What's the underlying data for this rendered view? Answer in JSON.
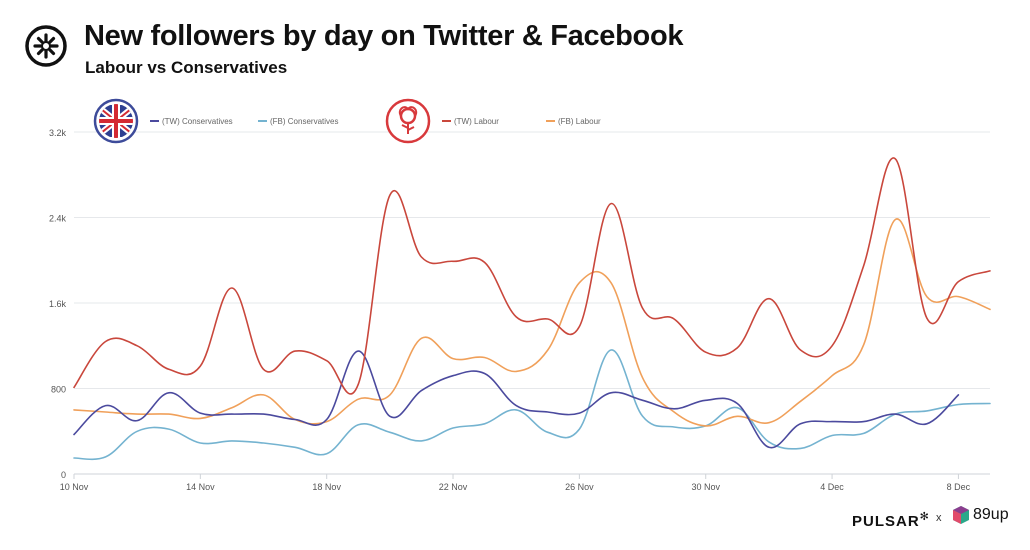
{
  "header": {
    "title": "New followers by day on Twitter & Facebook",
    "subtitle": "Labour vs Conservatives"
  },
  "footer": {
    "brand": "PULSAR",
    "separator": "x",
    "partner": "89up"
  },
  "icons": {
    "header_logo": "pulsar-asterisk-logo",
    "conservatives": "union-jack-badge",
    "labour": "labour-rose-badge"
  },
  "chart_data": {
    "type": "line",
    "x": [
      "10 Nov",
      "11 Nov",
      "12 Nov",
      "13 Nov",
      "14 Nov",
      "15 Nov",
      "16 Nov",
      "17 Nov",
      "18 Nov",
      "19 Nov",
      "20 Nov",
      "21 Nov",
      "22 Nov",
      "23 Nov",
      "24 Nov",
      "25 Nov",
      "26 Nov",
      "27 Nov",
      "28 Nov",
      "29 Nov",
      "30 Nov",
      "1 Dec",
      "2 Dec",
      "3 Dec",
      "4 Dec",
      "5 Dec",
      "6 Dec",
      "7 Dec",
      "8 Dec",
      "9 Dec"
    ],
    "x_tick_labels": [
      "10 Nov",
      "14 Nov",
      "18 Nov",
      "22 Nov",
      "26 Nov",
      "30 Nov",
      "4 Dec",
      "8 Dec"
    ],
    "ylim": [
      0,
      3200
    ],
    "y_ticks": [
      0,
      800,
      1600,
      2400,
      3200
    ],
    "y_tick_labels": [
      "0",
      "800",
      "1.6k",
      "2.4k",
      "3.2k"
    ],
    "grid": "horizontal",
    "legend_position": "top",
    "series": [
      {
        "name": "(TW) Conservatives",
        "color": "#4b4a9e",
        "values": [
          370,
          640,
          500,
          760,
          570,
          560,
          560,
          510,
          510,
          1150,
          540,
          780,
          920,
          940,
          640,
          580,
          570,
          760,
          690,
          610,
          690,
          660,
          250,
          470,
          490,
          490,
          560,
          470,
          740,
          null
        ]
      },
      {
        "name": "(FB) Conservatives",
        "color": "#74b3d0",
        "values": [
          150,
          160,
          400,
          420,
          290,
          310,
          290,
          250,
          190,
          460,
          390,
          310,
          430,
          470,
          600,
          390,
          420,
          1160,
          540,
          440,
          450,
          620,
          300,
          240,
          360,
          380,
          560,
          590,
          650,
          660
        ]
      },
      {
        "name": "(TW) Labour",
        "color": "#c9473c",
        "values": [
          810,
          1240,
          1200,
          980,
          1010,
          1740,
          980,
          1150,
          1060,
          840,
          2610,
          2030,
          1990,
          1980,
          1470,
          1450,
          1380,
          2530,
          1550,
          1450,
          1140,
          1180,
          1640,
          1160,
          1200,
          1950,
          2950,
          1460,
          1800,
          1900
        ]
      },
      {
        "name": "(FB) Labour",
        "color": "#f0a05a",
        "values": [
          600,
          580,
          560,
          560,
          520,
          620,
          740,
          510,
          490,
          700,
          740,
          1270,
          1080,
          1090,
          960,
          1160,
          1790,
          1790,
          900,
          580,
          450,
          540,
          480,
          680,
          920,
          1210,
          2380,
          1660,
          1660,
          1540
        ]
      }
    ]
  }
}
